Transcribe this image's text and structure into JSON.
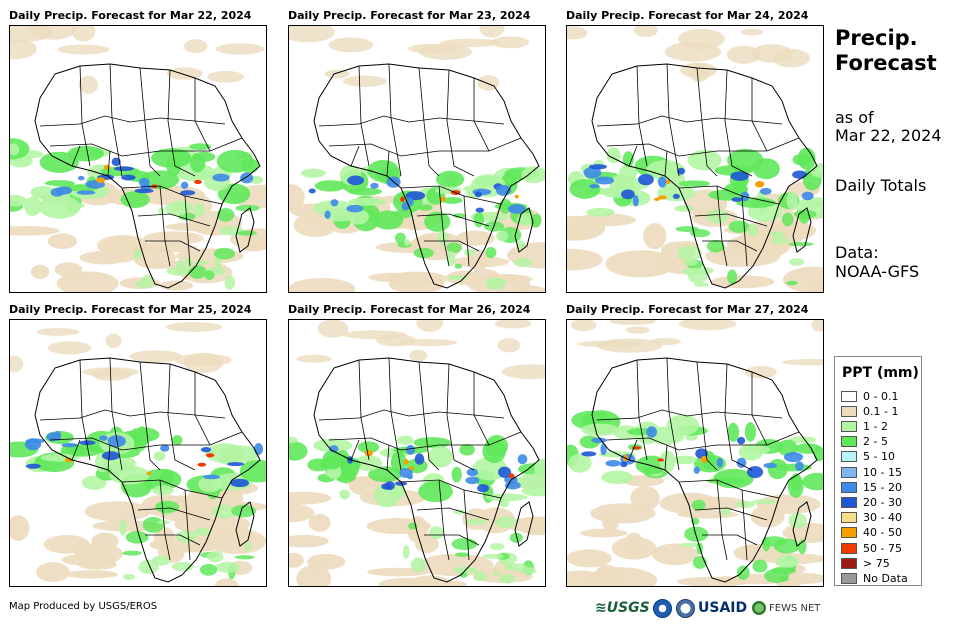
{
  "panels": [
    {
      "title": "Daily Precip. Forecast for Mar 22, 2024",
      "date_label": "Mar 22, 2024"
    },
    {
      "title": "Daily Precip. Forecast for Mar 23, 2024",
      "date_label": "Mar 23, 2024"
    },
    {
      "title": "Daily Precip. Forecast for Mar 24, 2024",
      "date_label": "Mar 24, 2024"
    },
    {
      "title": "Daily Precip. Forecast for Mar 25, 2024",
      "date_label": "Mar 25, 2024"
    },
    {
      "title": "Daily Precip. Forecast for Mar 26, 2024",
      "date_label": "Mar 26, 2024"
    },
    {
      "title": "Daily Precip. Forecast for Mar 27, 2024",
      "date_label": "Mar 27, 2024"
    }
  ],
  "sidebar": {
    "title_line1": "Precip.",
    "title_line2": "Forecast",
    "asof_line1": "as of",
    "asof_line2": "Mar 22, 2024",
    "totals": "Daily Totals",
    "data_line1": "Data:",
    "data_line2": "NOAA-GFS"
  },
  "legend": {
    "title": "PPT (mm)",
    "items": [
      {
        "label": "0 - 0.1",
        "color": "#ffffff"
      },
      {
        "label": "0.1 - 1",
        "color": "#ecdcbe"
      },
      {
        "label": "1 - 2",
        "color": "#b4f5a4"
      },
      {
        "label": "2 - 5",
        "color": "#5fe85a"
      },
      {
        "label": "5 - 10",
        "color": "#b9f3f6"
      },
      {
        "label": "10 - 15",
        "color": "#7fb6f0"
      },
      {
        "label": "15 - 20",
        "color": "#3d8ae8"
      },
      {
        "label": "20 - 30",
        "color": "#1e56d6"
      },
      {
        "label": "30 - 40",
        "color": "#f7e08a"
      },
      {
        "label": "40 - 50",
        "color": "#f6a000"
      },
      {
        "label": "50 - 75",
        "color": "#f03a00"
      },
      {
        "label": "> 75",
        "color": "#9c1a12"
      },
      {
        "label": "No Data",
        "color": "#999999"
      }
    ]
  },
  "footer": {
    "credit": "Map Produced by USGS/EROS",
    "logo_usgs": "≋USGS",
    "logo_usaid": "USAID",
    "logo_fews": "FEWS NET"
  },
  "colors": {
    "tan": "#ecdcbe",
    "light_green": "#b4f5a4",
    "green": "#5fe85a",
    "light_blue": "#b9f3f6",
    "blue": "#3d8ae8",
    "dark_blue": "#1e56d6",
    "orange": "#f6a000",
    "red": "#f03a00"
  }
}
